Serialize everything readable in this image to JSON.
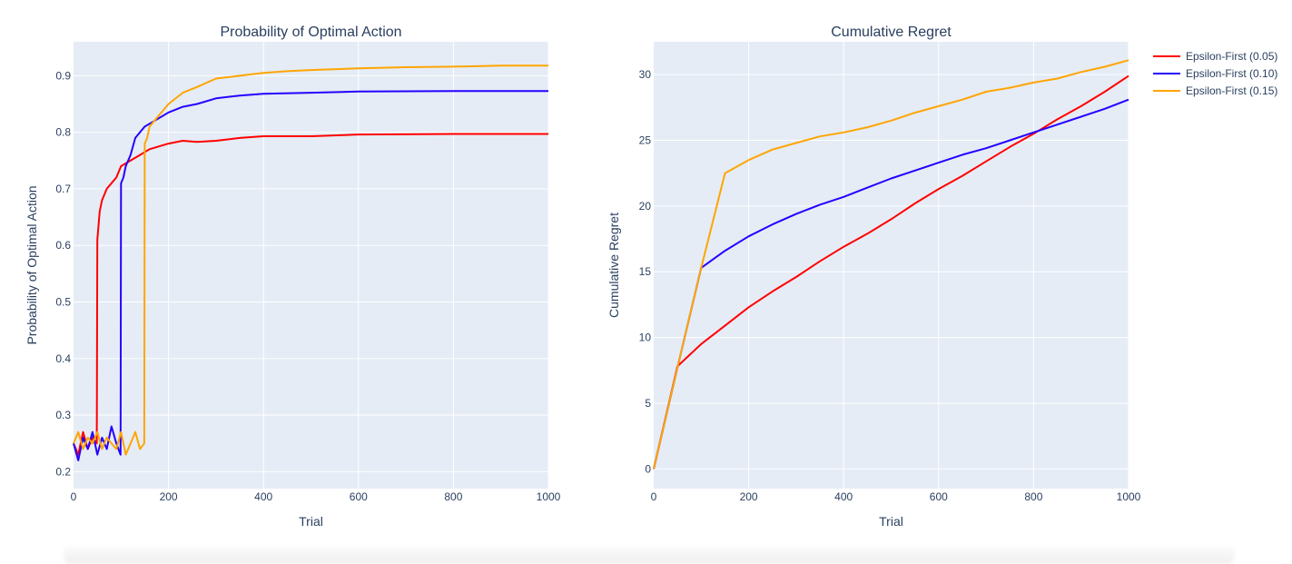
{
  "colors": {
    "plot_bg": "#e5ecf6",
    "grid": "#ffffff",
    "text": "#2a3f5f"
  },
  "legend": {
    "placement": "right",
    "items": [
      {
        "label": "Epsilon-First (0.05)",
        "color": "#ff0000"
      },
      {
        "label": "Epsilon-First (0.10)",
        "color": "#2600ff"
      },
      {
        "label": "Epsilon-First (0.15)",
        "color": "#ffa500"
      }
    ]
  },
  "chart_data": [
    {
      "type": "line",
      "title": "Probability of Optimal Action",
      "xlabel": "Trial",
      "ylabel": "Probability of Optimal Action",
      "xlim": [
        0,
        1000
      ],
      "ylim": [
        0.17,
        0.96
      ],
      "xticks": [
        0,
        200,
        400,
        600,
        800,
        1000
      ],
      "yticks": [
        0.2,
        0.3,
        0.4,
        0.5,
        0.6,
        0.7,
        0.8,
        0.9
      ],
      "ytick_labels": [
        "0.2",
        "0.3",
        "0.4",
        "0.5",
        "0.6",
        "0.7",
        "0.8",
        "0.9"
      ],
      "grid": true,
      "series": [
        {
          "name": "Epsilon-First (0.05)",
          "color": "#ff0000",
          "x": [
            0,
            10,
            20,
            30,
            40,
            49,
            50,
            55,
            60,
            70,
            80,
            90,
            100,
            110,
            120,
            140,
            160,
            180,
            200,
            230,
            260,
            300,
            350,
            400,
            500,
            600,
            800,
            1000
          ],
          "y": [
            0.25,
            0.23,
            0.27,
            0.24,
            0.26,
            0.25,
            0.61,
            0.66,
            0.68,
            0.7,
            0.71,
            0.72,
            0.74,
            0.745,
            0.75,
            0.76,
            0.77,
            0.775,
            0.78,
            0.785,
            0.783,
            0.785,
            0.79,
            0.793,
            0.793,
            0.796,
            0.797,
            0.797
          ]
        },
        {
          "name": "Epsilon-First (0.10)",
          "color": "#2600ff",
          "x": [
            0,
            10,
            20,
            30,
            40,
            50,
            60,
            70,
            80,
            90,
            99,
            100,
            105,
            110,
            120,
            130,
            140,
            150,
            170,
            200,
            230,
            260,
            300,
            350,
            400,
            500,
            600,
            800,
            1000
          ],
          "y": [
            0.25,
            0.22,
            0.26,
            0.24,
            0.27,
            0.23,
            0.26,
            0.24,
            0.28,
            0.25,
            0.23,
            0.71,
            0.72,
            0.74,
            0.76,
            0.79,
            0.8,
            0.81,
            0.82,
            0.835,
            0.845,
            0.85,
            0.86,
            0.865,
            0.868,
            0.87,
            0.872,
            0.873,
            0.873
          ]
        },
        {
          "name": "Epsilon-First (0.15)",
          "color": "#ffa500",
          "x": [
            0,
            10,
            20,
            30,
            40,
            50,
            60,
            70,
            80,
            90,
            100,
            110,
            120,
            130,
            140,
            149,
            150,
            155,
            160,
            170,
            180,
            200,
            230,
            260,
            300,
            350,
            400,
            450,
            500,
            600,
            700,
            800,
            900,
            1000
          ],
          "y": [
            0.25,
            0.27,
            0.24,
            0.26,
            0.25,
            0.27,
            0.24,
            0.26,
            0.25,
            0.24,
            0.27,
            0.23,
            0.25,
            0.27,
            0.24,
            0.25,
            0.78,
            0.79,
            0.81,
            0.82,
            0.83,
            0.85,
            0.87,
            0.88,
            0.895,
            0.9,
            0.905,
            0.908,
            0.91,
            0.913,
            0.915,
            0.916,
            0.918,
            0.918
          ]
        }
      ]
    },
    {
      "type": "line",
      "title": "Cumulative Regret",
      "xlabel": "Trial",
      "ylabel": "Cumulative Regret",
      "xlim": [
        0,
        1000
      ],
      "ylim": [
        -1.5,
        32.5
      ],
      "xticks": [
        0,
        200,
        400,
        600,
        800,
        1000
      ],
      "yticks": [
        0,
        5,
        10,
        15,
        20,
        25,
        30
      ],
      "ytick_labels": [
        "0",
        "5",
        "10",
        "15",
        "20",
        "25",
        "30"
      ],
      "grid": true,
      "series": [
        {
          "name": "Epsilon-First (0.05)",
          "color": "#ff0000",
          "x": [
            0,
            50,
            100,
            150,
            200,
            250,
            300,
            350,
            400,
            450,
            500,
            550,
            600,
            650,
            700,
            750,
            800,
            850,
            900,
            950,
            1000
          ],
          "y": [
            0,
            7.8,
            9.5,
            10.9,
            12.3,
            13.5,
            14.6,
            15.8,
            16.9,
            17.9,
            19.0,
            20.2,
            21.3,
            22.3,
            23.4,
            24.5,
            25.5,
            26.6,
            27.6,
            28.7,
            29.9
          ]
        },
        {
          "name": "Epsilon-First (0.10)",
          "color": "#2600ff",
          "x": [
            0,
            50,
            100,
            150,
            200,
            250,
            300,
            350,
            400,
            450,
            500,
            550,
            600,
            650,
            700,
            750,
            800,
            850,
            900,
            950,
            1000
          ],
          "y": [
            0,
            7.7,
            15.3,
            16.6,
            17.7,
            18.6,
            19.4,
            20.1,
            20.7,
            21.4,
            22.1,
            22.7,
            23.3,
            23.9,
            24.4,
            25.0,
            25.6,
            26.2,
            26.8,
            27.4,
            28.1
          ]
        },
        {
          "name": "Epsilon-First (0.15)",
          "color": "#ffa500",
          "x": [
            0,
            50,
            100,
            150,
            200,
            250,
            300,
            350,
            400,
            450,
            500,
            550,
            600,
            650,
            700,
            750,
            800,
            850,
            900,
            950,
            1000
          ],
          "y": [
            0,
            7.7,
            15.3,
            22.5,
            23.5,
            24.3,
            24.8,
            25.3,
            25.6,
            26.0,
            26.5,
            27.1,
            27.6,
            28.1,
            28.7,
            29.0,
            29.4,
            29.7,
            30.2,
            30.6,
            31.1
          ]
        }
      ]
    }
  ]
}
